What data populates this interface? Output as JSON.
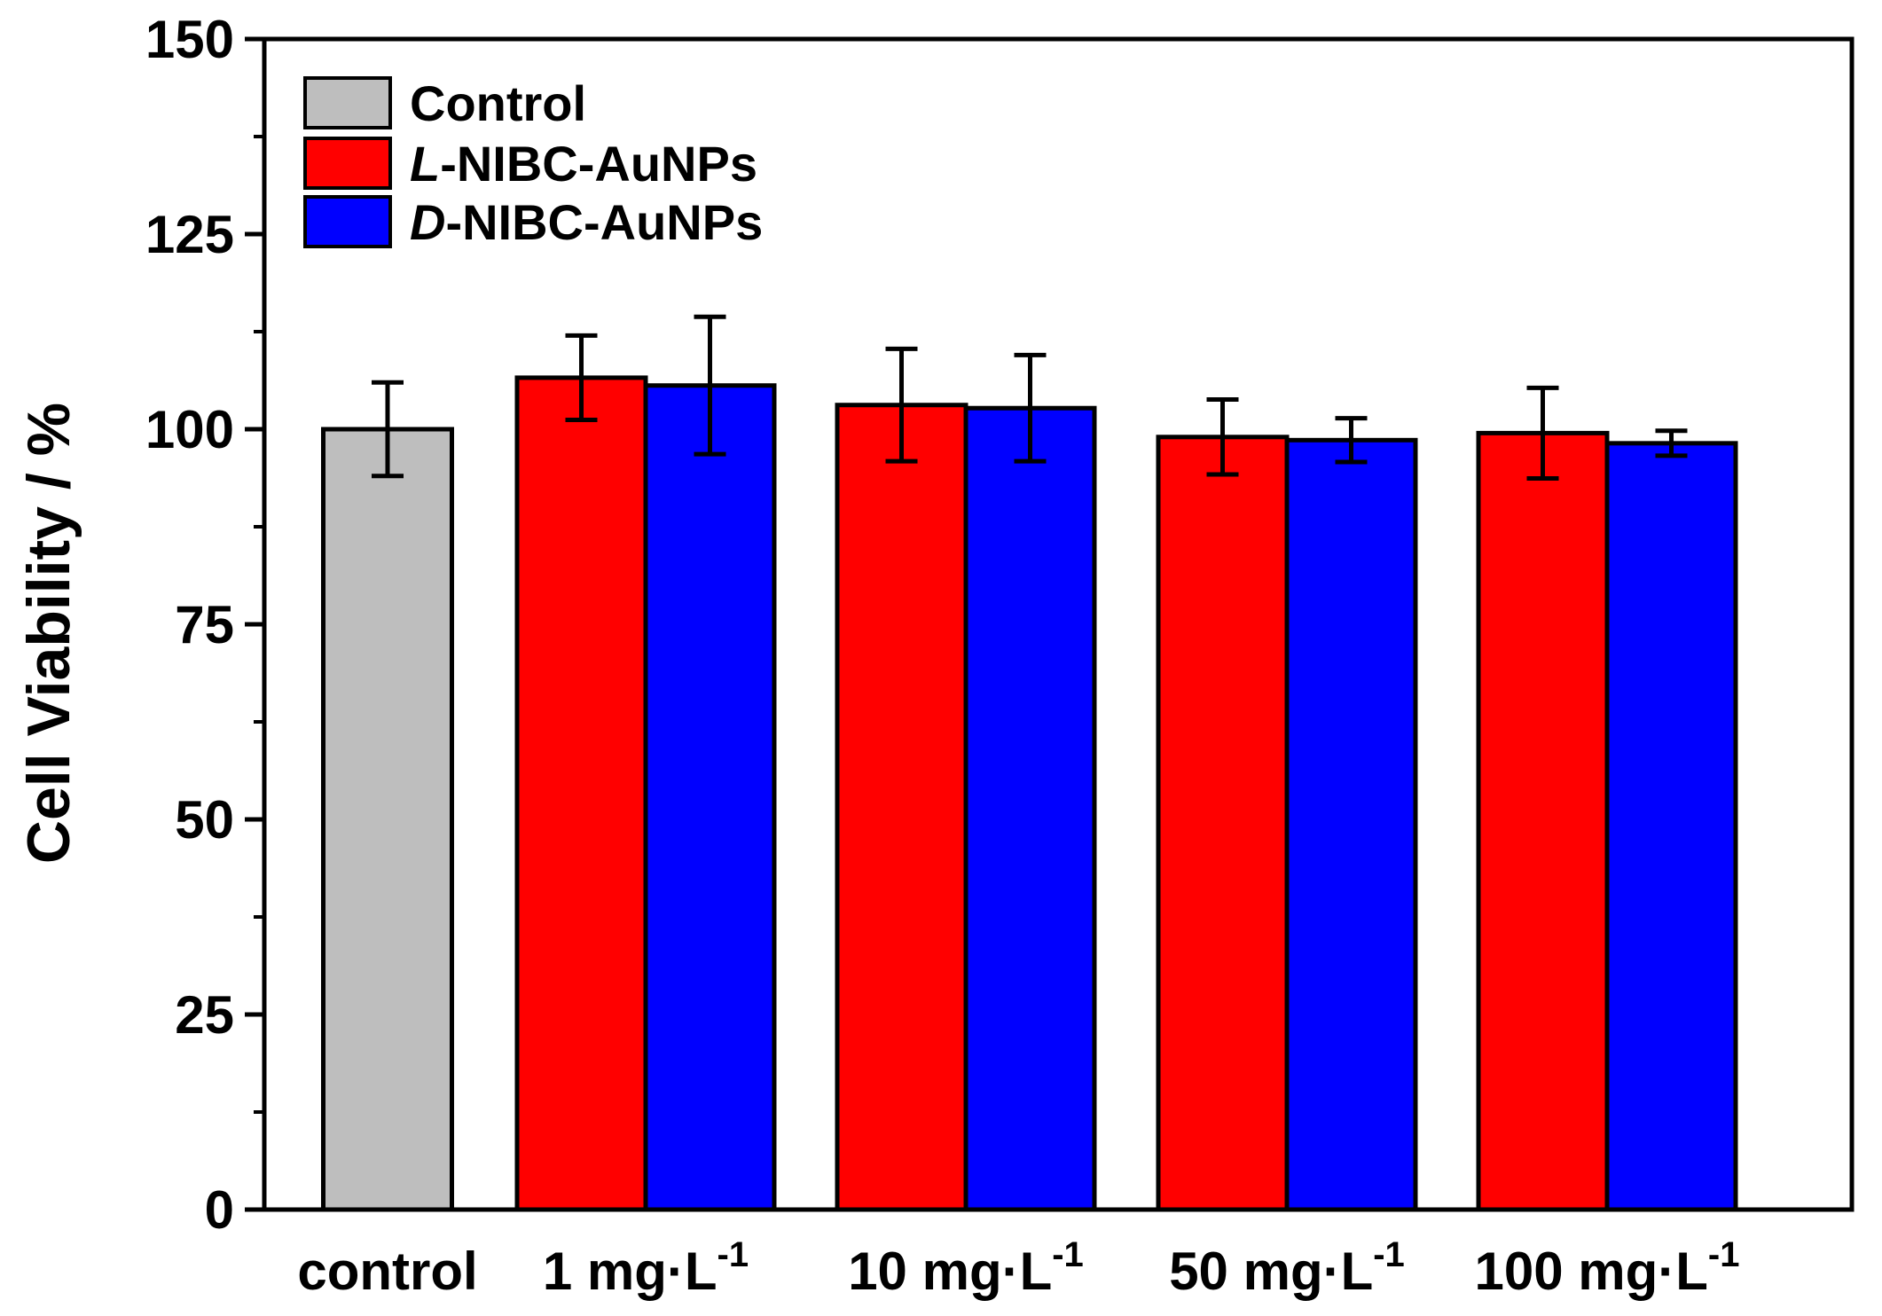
{
  "chart_data": {
    "type": "bar",
    "ylabel": "Cell Viability / %",
    "ylim": [
      0,
      150
    ],
    "yticks": [
      "0",
      "25",
      "50",
      "75",
      "100",
      "125",
      "150"
    ],
    "categories": [
      {
        "text": "control",
        "sup": ""
      },
      {
        "text": "1 mg·L",
        "sup": "-1"
      },
      {
        "text": "10 mg·L",
        "sup": "-1"
      },
      {
        "text": "50 mg·L",
        "sup": "-1"
      },
      {
        "text": "100 mg·L",
        "sup": "-1"
      }
    ],
    "series": [
      {
        "name": "Control",
        "name_prefix": "",
        "name_rest": "Control",
        "color": "#bebebe",
        "values": [
          100,
          null,
          null,
          null,
          null
        ],
        "errors": [
          6,
          null,
          null,
          null,
          null
        ]
      },
      {
        "name": "L-NIBC-AuNPs",
        "name_prefix": "L",
        "name_rest": "-NIBC-AuNPs",
        "color": "#ff0000",
        "values": [
          null,
          106.6,
          103.1,
          99,
          99.5
        ],
        "errors": [
          null,
          5.4,
          7.2,
          4.8,
          5.8
        ]
      },
      {
        "name": "D-NIBC-AuNPs",
        "name_prefix": "D",
        "name_rest": "-NIBC-AuNPs",
        "color": "#0000ff",
        "values": [
          null,
          105.6,
          102.7,
          98.6,
          98.2
        ],
        "errors": [
          null,
          8.8,
          6.8,
          2.8,
          1.6
        ]
      }
    ],
    "legend_position": "top-left",
    "grid": false
  }
}
